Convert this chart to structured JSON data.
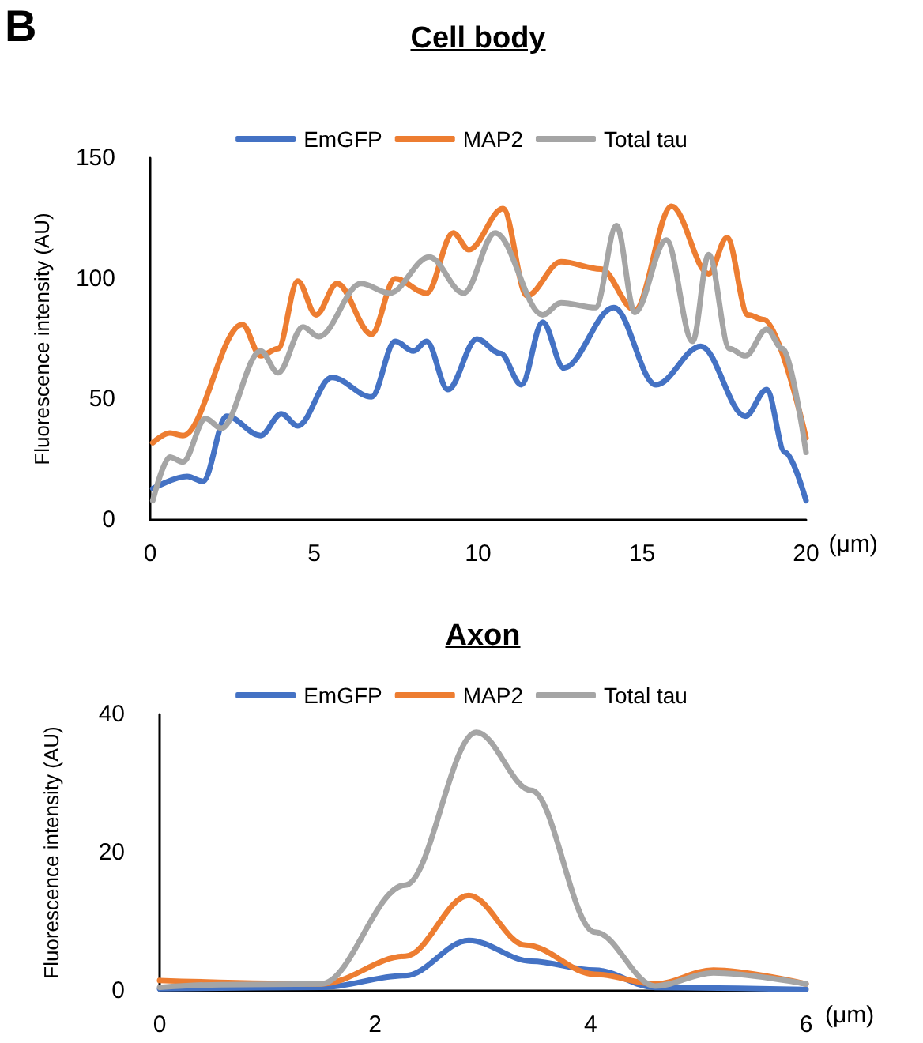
{
  "chart_data": [
    {
      "type": "line",
      "title": "Cell body",
      "xlabel": "(μm)",
      "ylabel": "Fluorescence intensity (AU)",
      "annotations": [
        "B"
      ],
      "xlim": [
        0,
        20
      ],
      "xticks": [
        0,
        5,
        10,
        15,
        20
      ],
      "ylim": [
        0,
        150
      ],
      "yticks": [
        0,
        50,
        100,
        150
      ],
      "grid": false,
      "legend": "top",
      "marker": "none",
      "line_style": "solid",
      "series": [
        {
          "name": "EmGFP",
          "color": "#4472c4",
          "x": [
            0.08,
            1.13,
            1.61,
            2.33,
            3.37,
            4.0,
            4.5,
            5.54,
            6.75,
            7.47,
            8.03,
            8.43,
            9.08,
            9.96,
            10.68,
            11.32,
            11.97,
            12.61,
            14.14,
            15.42,
            16.79,
            18.15,
            18.8,
            19.36,
            20
          ],
          "values": [
            13,
            18,
            16,
            43,
            35,
            44,
            39,
            59,
            51,
            74,
            70,
            74,
            54,
            75,
            69,
            56,
            82,
            63,
            88,
            56,
            72,
            43,
            54,
            28,
            8
          ]
        },
        {
          "name": "MAP2",
          "color": "#ed7d31",
          "x": [
            0.08,
            0.6,
            1.0,
            2.81,
            3.37,
            3.9,
            4.5,
            5.06,
            5.7,
            6.75,
            7.47,
            8.43,
            9.24,
            9.72,
            10.76,
            11.49,
            12.53,
            13.74,
            14.78,
            15.9,
            17.03,
            17.59,
            18.23,
            18.71,
            20
          ],
          "values": [
            32,
            36,
            35,
            81,
            68,
            71,
            99,
            85,
            98,
            77,
            100,
            94,
            119,
            112,
            129,
            93,
            107,
            104,
            87,
            130,
            102,
            117,
            85,
            83,
            34
          ]
        },
        {
          "name": "Total tau",
          "color": "#a5a5a5",
          "x": [
            0.08,
            0.6,
            1.0,
            1.69,
            2.17,
            3.37,
            3.9,
            4.66,
            5.14,
            6.43,
            7.3,
            8.51,
            9.56,
            10.52,
            11.97,
            12.53,
            13.58,
            14.22,
            14.78,
            15.74,
            16.54,
            17.03,
            17.67,
            18.15,
            18.8,
            19.28,
            20
          ],
          "values": [
            8,
            26,
            24,
            42,
            38,
            70,
            61,
            80,
            76,
            98,
            94,
            109,
            94,
            119,
            85,
            90,
            88,
            122,
            86,
            116,
            74,
            110,
            71,
            68,
            79,
            71,
            28
          ]
        }
      ]
    },
    {
      "type": "line",
      "title": "Axon",
      "xlabel": "(μm)",
      "ylabel": "Fluorescence intensity (AU)",
      "xlim": [
        0,
        6
      ],
      "xticks": [
        0,
        2,
        4,
        6
      ],
      "ylim": [
        0,
        40
      ],
      "yticks": [
        0,
        20,
        40
      ],
      "grid": false,
      "legend": "top",
      "marker": "none",
      "line_style": "solid",
      "series": [
        {
          "name": "EmGFP",
          "color": "#4472c4",
          "x": [
            0,
            1.5,
            2.28,
            2.87,
            3.45,
            4.04,
            4.6,
            6
          ],
          "values": [
            0.3,
            0.5,
            2.2,
            7.3,
            4.3,
            3,
            0.5,
            0.2
          ]
        },
        {
          "name": "MAP2",
          "color": "#ed7d31",
          "x": [
            0,
            1.5,
            2.28,
            2.87,
            3.4,
            4.04,
            4.6,
            5.14,
            6
          ],
          "values": [
            1.5,
            1,
            5,
            13.8,
            6.6,
            2.4,
            1,
            3,
            1
          ]
        },
        {
          "name": "Total tau",
          "color": "#a5a5a5",
          "x": [
            0,
            0.57,
            1.5,
            2.28,
            2.94,
            3.45,
            4.04,
            4.6,
            5.14,
            6
          ],
          "values": [
            0.5,
            0.9,
            1,
            15.3,
            37.4,
            29,
            8.5,
            0.7,
            2.6,
            1
          ]
        }
      ]
    }
  ]
}
